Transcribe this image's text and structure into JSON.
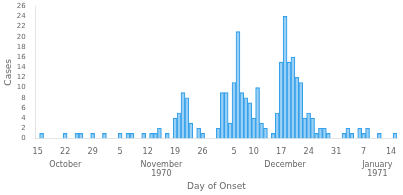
{
  "chart_data": {
    "type": "bar",
    "xlabel": "Day of Onset",
    "ylabel": "Cases",
    "categories": [
      "15",
      null,
      null,
      null,
      null,
      null,
      null,
      "22",
      null,
      null,
      null,
      null,
      null,
      null,
      "29",
      null,
      null,
      null,
      null,
      null,
      null,
      "5",
      null,
      null,
      null,
      null,
      null,
      null,
      "12",
      null,
      null,
      null,
      null,
      null,
      null,
      "19",
      null,
      null,
      null,
      null,
      null,
      null,
      "26",
      null,
      null,
      null,
      null,
      null,
      null,
      null,
      "5",
      null,
      null,
      null,
      null,
      "10",
      null,
      null,
      null,
      null,
      null,
      null,
      "17",
      null,
      null,
      null,
      null,
      null,
      null,
      "24",
      null,
      null,
      null,
      null,
      null,
      null,
      "31",
      null,
      null,
      null,
      null,
      null,
      null,
      "7",
      null,
      null,
      null,
      null,
      null,
      null,
      "14",
      null
    ],
    "values": [
      0,
      1,
      0,
      0,
      0,
      0,
      0,
      1,
      0,
      0,
      1,
      1,
      0,
      0,
      1,
      0,
      0,
      1,
      0,
      0,
      0,
      1,
      0,
      1,
      1,
      0,
      0,
      1,
      0,
      1,
      1,
      2,
      0,
      1,
      0,
      4,
      5,
      9,
      8,
      3,
      0,
      2,
      1,
      0,
      0,
      0,
      2,
      9,
      9,
      3,
      11,
      21,
      9,
      8,
      7,
      4,
      10,
      3,
      2,
      0,
      1,
      5,
      15,
      24,
      15,
      16,
      12,
      11,
      4,
      5,
      4,
      1,
      2,
      2,
      1,
      0,
      0,
      0,
      1,
      2,
      1,
      0,
      2,
      1,
      2,
      0,
      0,
      1,
      0,
      0,
      0,
      1
    ],
    "ylim": [
      0,
      26
    ],
    "yticks": [
      0,
      2,
      4,
      6,
      8,
      10,
      12,
      14,
      16,
      18,
      20,
      22,
      24,
      26
    ],
    "annotations": [
      {
        "text": "October",
        "x": 7
      },
      {
        "text": "November\n1970",
        "x": 31.5
      },
      {
        "text": "December",
        "x": 63
      },
      {
        "text": "January\n1971",
        "x": 86.5
      }
    ],
    "grid": false
  }
}
